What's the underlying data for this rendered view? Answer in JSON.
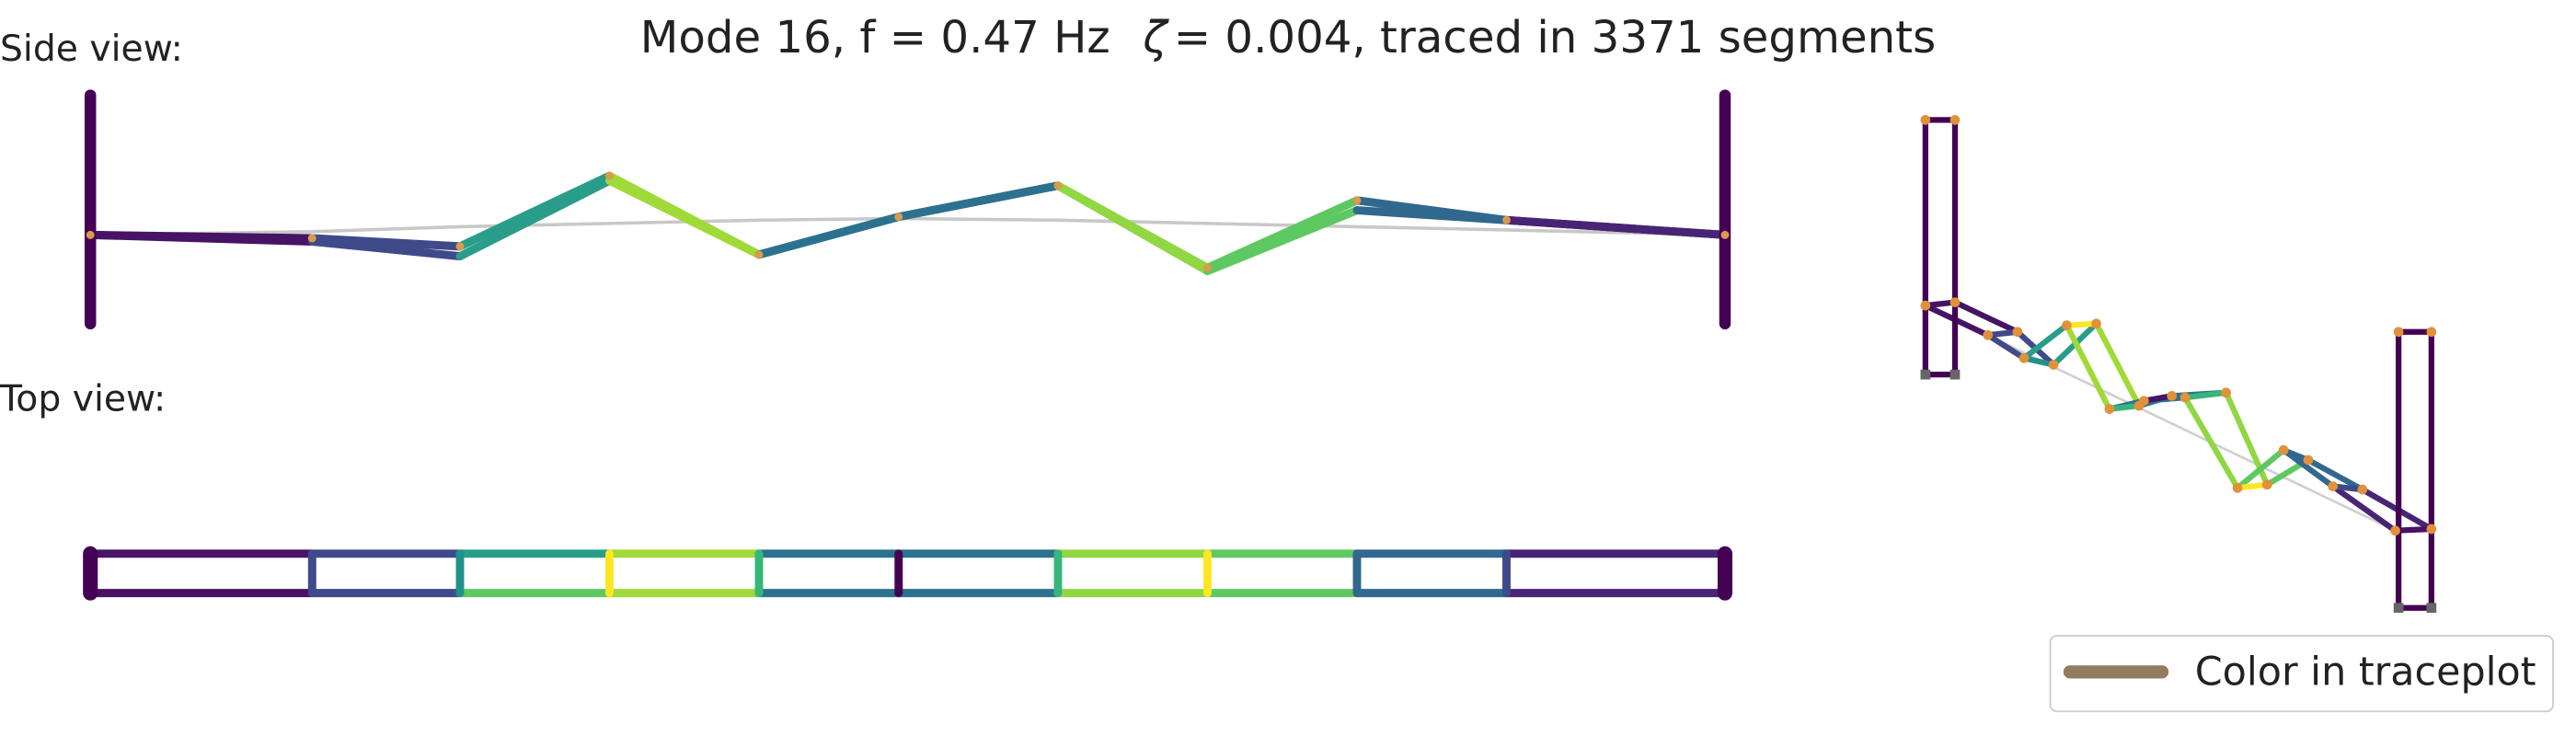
{
  "title": {
    "prefix": "Mode 16, f = 0.47 Hz",
    "symbol": "ζ",
    "suffix": "= 0.004,  traced in 3371 segments"
  },
  "labels": {
    "side_view": "Side view:",
    "top_view": "Top view:"
  },
  "legend": {
    "label": "Color in traceplot"
  }
}
